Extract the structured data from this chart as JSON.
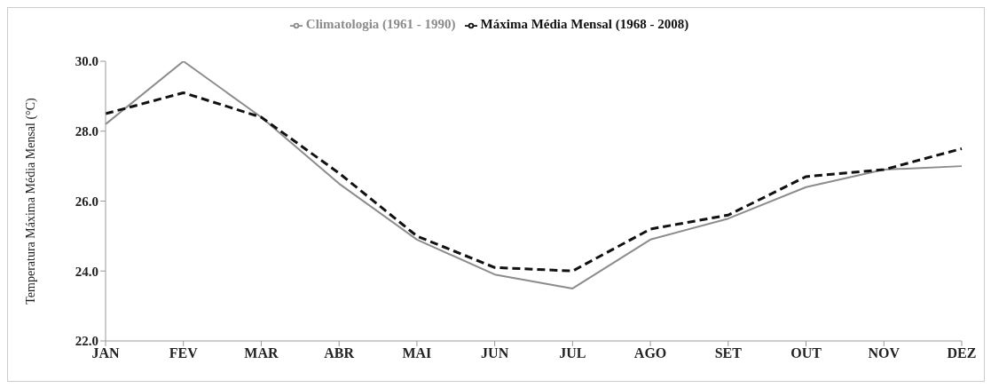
{
  "chart_data": {
    "type": "line",
    "ylabel": "Temperatura Máxima Média Mensal (°C)",
    "categories": [
      "JAN",
      "FEV",
      "MAR",
      "ABR",
      "MAI",
      "JUN",
      "JUL",
      "AGO",
      "SET",
      "OUT",
      "NOV",
      "DEZ"
    ],
    "series": [
      {
        "name": "Climatologia (1961 - 1990)",
        "color": "#8c8c8c",
        "line_style": "solid",
        "values": [
          28.2,
          30.0,
          28.4,
          26.5,
          24.9,
          23.9,
          23.5,
          24.9,
          25.5,
          26.4,
          26.9,
          27.0
        ]
      },
      {
        "name": "Máxima Média Mensal (1968 - 2008)",
        "color": "#111111",
        "line_style": "dashed",
        "values": [
          28.5,
          29.1,
          28.4,
          26.8,
          25.0,
          24.1,
          24.0,
          25.2,
          25.6,
          26.7,
          26.9,
          27.5
        ]
      }
    ],
    "ylim": [
      22,
      30
    ],
    "yticks": [
      {
        "value": 22,
        "label": "22.0"
      },
      {
        "value": 24,
        "label": "24.0"
      },
      {
        "value": 26,
        "label": "26.0"
      },
      {
        "value": 28,
        "label": "28.0"
      },
      {
        "value": 30,
        "label": "30.0"
      }
    ],
    "grid": false,
    "legend": "top",
    "marker": "none"
  }
}
